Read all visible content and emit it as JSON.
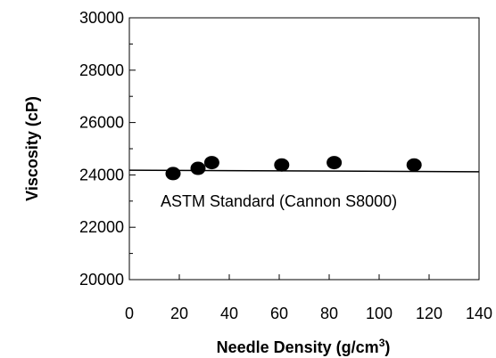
{
  "chart_data": {
    "type": "scatter",
    "xlabel": "Needle Density (g/cm",
    "xlabel_superscript": "3",
    "xlabel_suffix": ")",
    "ylabel": "Viscosity (cP)",
    "xlim": [
      0,
      140
    ],
    "ylim": [
      20000,
      30000
    ],
    "x_ticks": [
      0,
      20,
      40,
      60,
      80,
      100,
      120,
      140
    ],
    "y_ticks": [
      20000,
      22000,
      24000,
      26000,
      28000,
      30000
    ],
    "x_tick_labels": [
      "0",
      "20",
      "40",
      "60",
      "80",
      "100",
      "120",
      "140"
    ],
    "y_tick_labels": [
      "20000",
      "22000",
      "24000",
      "26000",
      "28000",
      "30000"
    ],
    "grid": false,
    "points": [
      {
        "x": 17.5,
        "y": 24050
      },
      {
        "x": 27.5,
        "y": 24250
      },
      {
        "x": 33,
        "y": 24470
      },
      {
        "x": 61,
        "y": 24380
      },
      {
        "x": 82,
        "y": 24470
      },
      {
        "x": 114,
        "y": 24380
      }
    ],
    "reference_line": {
      "label": "ASTM Standard (Cannon S8000)",
      "x": [
        0,
        140
      ],
      "y": [
        24180,
        24120
      ]
    },
    "colors": {
      "points": "#000000",
      "line": "#000000",
      "axes": "#000000"
    }
  }
}
